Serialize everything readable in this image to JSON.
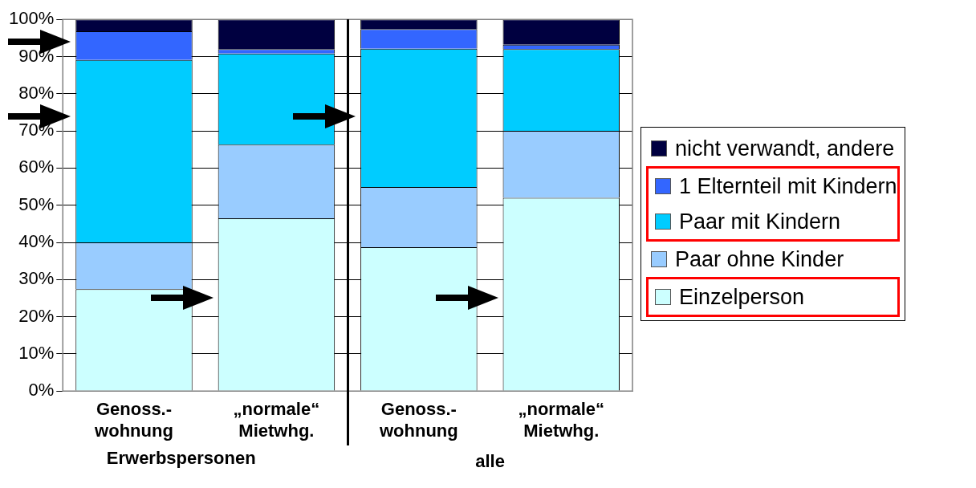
{
  "chart_data": {
    "type": "bar",
    "stacked": true,
    "categories": [
      "Genoss.- wohnung",
      "„normale“ Mietwhg.",
      "Genoss.- wohnung",
      "„normale“ Mietwhg."
    ],
    "series": [
      {
        "name": "Einzelperson",
        "color": "#ccffff",
        "values": [
          27.4,
          46.5,
          38.7,
          52.0
        ]
      },
      {
        "name": "Paar ohne Kinder",
        "color": "#99ccff",
        "values": [
          12.6,
          19.8,
          16.2,
          18.0
        ]
      },
      {
        "name": "Paar mit Kindern",
        "color": "#00ccff",
        "values": [
          49.1,
          24.5,
          37.2,
          22.0
        ]
      },
      {
        "name": "1 Elternteil mit Kindern",
        "color": "#3366ff",
        "values": [
          7.7,
          1.2,
          5.3,
          1.2
        ]
      },
      {
        "name": "nicht verwandt, andere",
        "color": "#000040",
        "values": [
          3.2,
          8.0,
          2.6,
          6.8
        ]
      }
    ],
    "ylim": [
      0,
      100
    ],
    "yticks": [
      {
        "value": 0,
        "label": "0%"
      },
      {
        "value": 10,
        "label": "10%"
      },
      {
        "value": 20,
        "label": "20%"
      },
      {
        "value": 30,
        "label": "30%"
      },
      {
        "value": 40,
        "label": "40%"
      },
      {
        "value": 50,
        "label": "50%"
      },
      {
        "value": 60,
        "label": "60%"
      },
      {
        "value": 70,
        "label": "70%"
      },
      {
        "value": 80,
        "label": "80%"
      },
      {
        "value": 90,
        "label": "90%"
      },
      {
        "value": 100,
        "label": "100%"
      }
    ],
    "grid": "y",
    "legend": "right",
    "annotations": [
      "Erwerbspersonen",
      "alle"
    ]
  }
}
